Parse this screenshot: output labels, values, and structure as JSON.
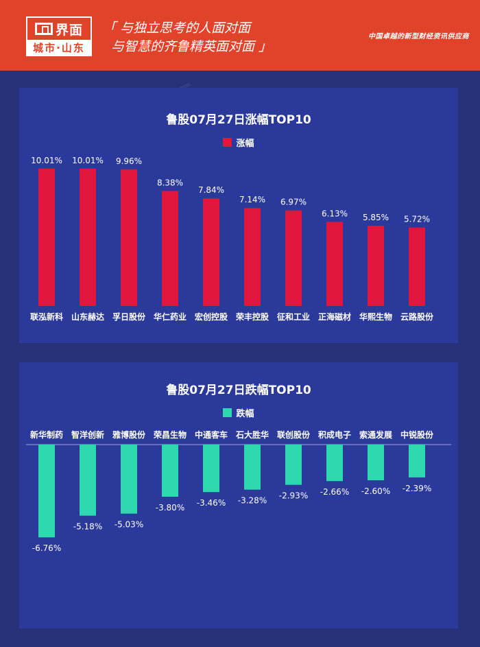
{
  "header": {
    "logo_name": "界面",
    "logo_sub": "城市·山东",
    "slogan_line1": "「 与独立思考的人面对面",
    "slogan_line2": "与智慧的齐鲁精英面对面 」",
    "tagline": "中国卓越的新型财经资讯供应商"
  },
  "watermark_text": "界面",
  "chart_data": [
    {
      "type": "bar",
      "title": "鲁股07月27日涨幅TOP10",
      "series": [
        {
          "name": "涨幅",
          "color": "#e0163c",
          "values": [
            10.01,
            10.01,
            9.96,
            8.38,
            7.84,
            7.14,
            6.97,
            6.13,
            5.85,
            5.72
          ]
        }
      ],
      "categories": [
        "联泓新科",
        "山东赫达",
        "孚日股份",
        "华仁药业",
        "宏创控股",
        "荣丰控股",
        "征和工业",
        "正海磁材",
        "华熙生物",
        "云路股份"
      ],
      "data_labels": [
        "10.01%",
        "10.01%",
        "9.96%",
        "8.38%",
        "7.84%",
        "7.14%",
        "6.97%",
        "6.13%",
        "5.85%",
        "5.72%"
      ],
      "grid": false
    },
    {
      "type": "bar",
      "title": "鲁股07月27日跌幅TOP10",
      "series": [
        {
          "name": "跌幅",
          "color": "#2fd9b0",
          "values": [
            -6.76,
            -5.18,
            -5.03,
            -3.8,
            -3.46,
            -3.28,
            -2.93,
            -2.66,
            -2.6,
            -2.39
          ]
        }
      ],
      "categories": [
        "新华制药",
        "智洋创新",
        "雅博股份",
        "荣昌生物",
        "中通客车",
        "石大胜华",
        "联创股份",
        "积成电子",
        "索通发展",
        "中锐股份"
      ],
      "data_labels": [
        "-6.76%",
        "-5.18%",
        "-5.03%",
        "-3.80%",
        "-3.46%",
        "-3.28%",
        "-2.93%",
        "-2.66%",
        "-2.60%",
        "-2.39%"
      ],
      "grid": false
    }
  ]
}
